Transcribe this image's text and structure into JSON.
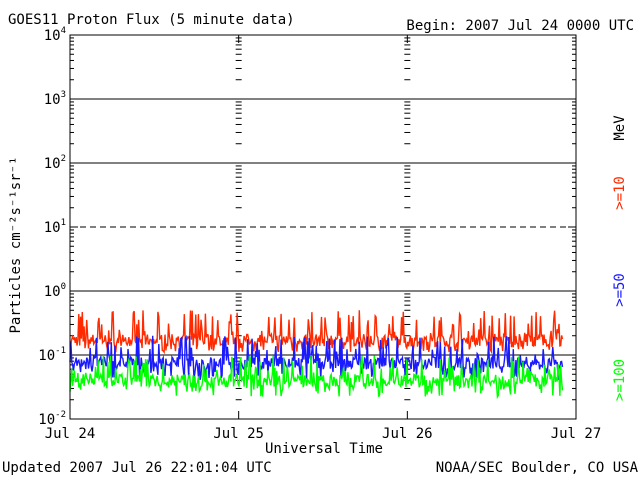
{
  "header": {
    "title": "GOES11 Proton Flux (5 minute data)",
    "begin": "Begin: 2007 Jul 24 0000 UTC"
  },
  "footer": {
    "updated": "Updated 2007 Jul 26 22:01:04 UTC",
    "credit": "NOAA/SEC Boulder, CO USA"
  },
  "chart_data": {
    "type": "line",
    "title": "GOES11 Proton Flux (5 minute data)",
    "xlabel": "Universal Time",
    "ylabel": "Particles cm⁻²s⁻¹sr⁻¹",
    "yscale": "log",
    "ylim": [
      0.01,
      10000
    ],
    "y_ticks": [
      {
        "base": "10",
        "exp": "4",
        "value": 10000
      },
      {
        "base": "10",
        "exp": "3",
        "value": 1000
      },
      {
        "base": "10",
        "exp": "2",
        "value": 100
      },
      {
        "base": "10",
        "exp": "1",
        "value": 10
      },
      {
        "base": "10",
        "exp": "0",
        "value": 1
      },
      {
        "base": "10",
        "exp": "-1",
        "value": 0.1
      },
      {
        "base": "10",
        "exp": "-2",
        "value": 0.01
      }
    ],
    "x_ticks": [
      "Jul 24",
      "Jul 25",
      "Jul 26",
      "Jul 27"
    ],
    "xlim_days": [
      0,
      3
    ],
    "data_end_day": 2.92,
    "dashed_gridline_value": 10,
    "grid": true,
    "legend_unit": "MeV",
    "series": [
      {
        "name": ">=10",
        "color": "#ff2a00",
        "baseline": 0.17,
        "spikes_max": 0.5,
        "min": 0.11
      },
      {
        "name": ">=50",
        "color": "#1a1aff",
        "baseline": 0.075,
        "spikes_max": 0.2,
        "min": 0.04
      },
      {
        "name": ">=100",
        "color": "#00ff00",
        "baseline": 0.04,
        "spikes_max": 0.1,
        "min": 0.022
      }
    ]
  }
}
